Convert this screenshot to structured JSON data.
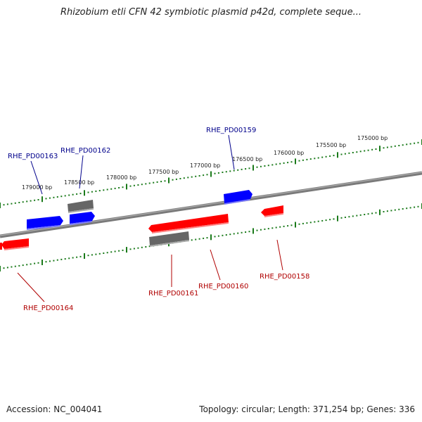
{
  "title": "Rhizobium etli CFN 42 symbiotic plasmid p42d, complete seque...",
  "footer": {
    "accession_label": "Accession: NC_004041",
    "summary_label": "Topology: circular; Length: 371,254 bp; Genes: 336"
  },
  "colors": {
    "forward_gene": "#0000ff",
    "reverse_gene": "#ff0000",
    "other_feature": "#666666",
    "backbone": "#7a7a7a",
    "tick": "#1a7a1a",
    "forward_label": "#00008b",
    "reverse_label": "#b00000"
  },
  "scale": {
    "unit": "bp",
    "labels": [
      "175000 bp",
      "175500 bp",
      "176000 bp",
      "176500 bp",
      "177000 bp",
      "177500 bp",
      "178000 bp",
      "178500 bp",
      "179000 bp"
    ]
  },
  "genes": [
    {
      "label": "RHE_PD00159",
      "strand": "forward"
    },
    {
      "label": "RHE_PD00162",
      "strand": "forward"
    },
    {
      "label": "RHE_PD00163",
      "strand": "forward"
    },
    {
      "label": "RHE_PD00158",
      "strand": "reverse"
    },
    {
      "label": "RHE_PD00160",
      "strand": "reverse"
    },
    {
      "label": "RHE_PD00161",
      "strand": "reverse"
    },
    {
      "label": "RHE_PD00164",
      "strand": "reverse"
    }
  ]
}
